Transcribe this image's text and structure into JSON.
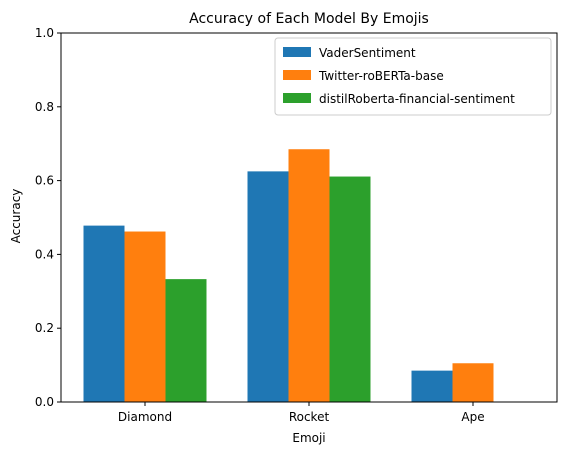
{
  "chart_data": {
    "type": "bar",
    "title": "Accuracy of Each Model By Emojis",
    "xlabel": "Emoji",
    "ylabel": "Accuracy",
    "categories": [
      "Diamond",
      "Rocket",
      "Ape"
    ],
    "ylim": [
      0,
      1
    ],
    "yticks": [
      0.0,
      0.2,
      0.4,
      0.6,
      0.8,
      1.0
    ],
    "ytick_labels": [
      "0.0",
      "0.2",
      "0.4",
      "0.6",
      "0.8",
      "1.0"
    ],
    "grid": false,
    "legend_position": "top-right",
    "series": [
      {
        "name": "VaderSentiment",
        "color": "#1f77b4",
        "values": [
          0.478,
          0.625,
          0.085
        ]
      },
      {
        "name": "Twitter-roBERTa-base",
        "color": "#ff7f0e",
        "values": [
          0.462,
          0.685,
          0.105
        ]
      },
      {
        "name": "distilRoberta-financial-sentiment",
        "color": "#2ca02c",
        "values": [
          0.333,
          0.611,
          0.0
        ]
      }
    ]
  }
}
